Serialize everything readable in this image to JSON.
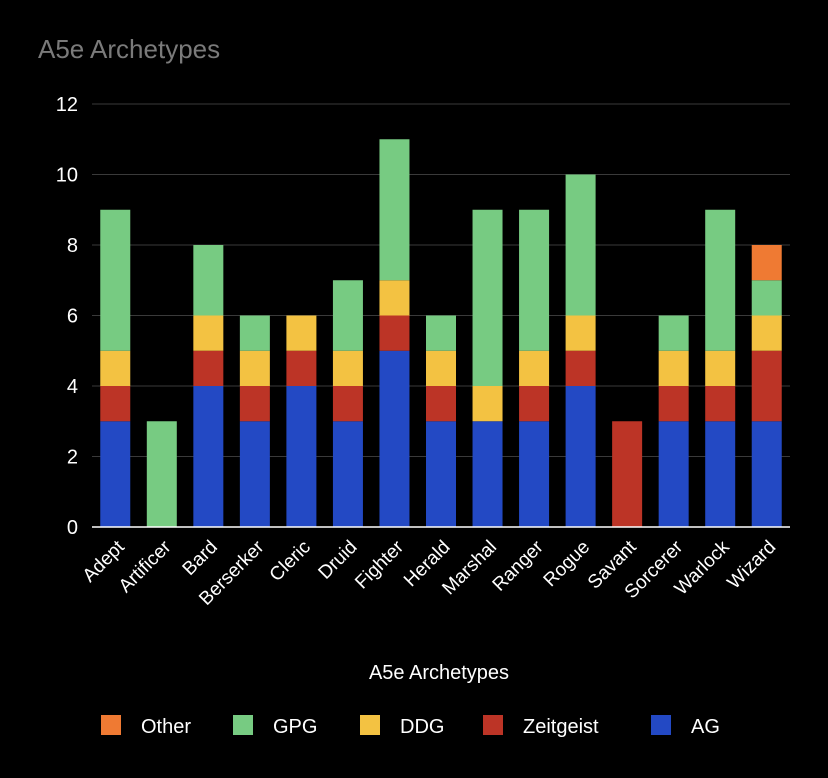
{
  "chart_data": {
    "type": "bar",
    "stacked": true,
    "title": "A5e Archetypes",
    "xlabel": "A5e Archetypes",
    "ylabel": "",
    "ylim": [
      0,
      12
    ],
    "yticks": [
      0,
      2,
      4,
      6,
      8,
      10,
      12
    ],
    "grid": true,
    "legend_position": "bottom",
    "categories": [
      "Adept",
      "Artificer",
      "Bard",
      "Berserker",
      "Cleric",
      "Druid",
      "Fighter",
      "Herald",
      "Marshal",
      "Ranger",
      "Rogue",
      "Savant",
      "Sorcerer",
      "Warlock",
      "Wizard"
    ],
    "series": [
      {
        "name": "AG",
        "color": "#2349c4",
        "values": [
          3,
          0,
          4,
          3,
          4,
          3,
          5,
          3,
          3,
          3,
          4,
          0,
          3,
          3,
          3
        ]
      },
      {
        "name": "Zeitgeist",
        "color": "#bc3426",
        "values": [
          1,
          0,
          1,
          1,
          1,
          1,
          1,
          1,
          0,
          1,
          1,
          3,
          1,
          1,
          2
        ]
      },
      {
        "name": "DDG",
        "color": "#f3c242",
        "values": [
          1,
          0,
          1,
          1,
          1,
          1,
          1,
          1,
          1,
          1,
          1,
          0,
          1,
          1,
          1
        ]
      },
      {
        "name": "GPG",
        "color": "#77cb82",
        "values": [
          4,
          3,
          2,
          1,
          0,
          2,
          4,
          1,
          5,
          4,
          4,
          0,
          1,
          4,
          1
        ]
      },
      {
        "name": "Other",
        "color": "#ef7a33",
        "values": [
          0,
          0,
          0,
          0,
          0,
          0,
          0,
          0,
          0,
          0,
          0,
          0,
          0,
          0,
          1
        ]
      }
    ],
    "legend_order": [
      "Other",
      "GPG",
      "DDG",
      "Zeitgeist",
      "AG"
    ]
  }
}
